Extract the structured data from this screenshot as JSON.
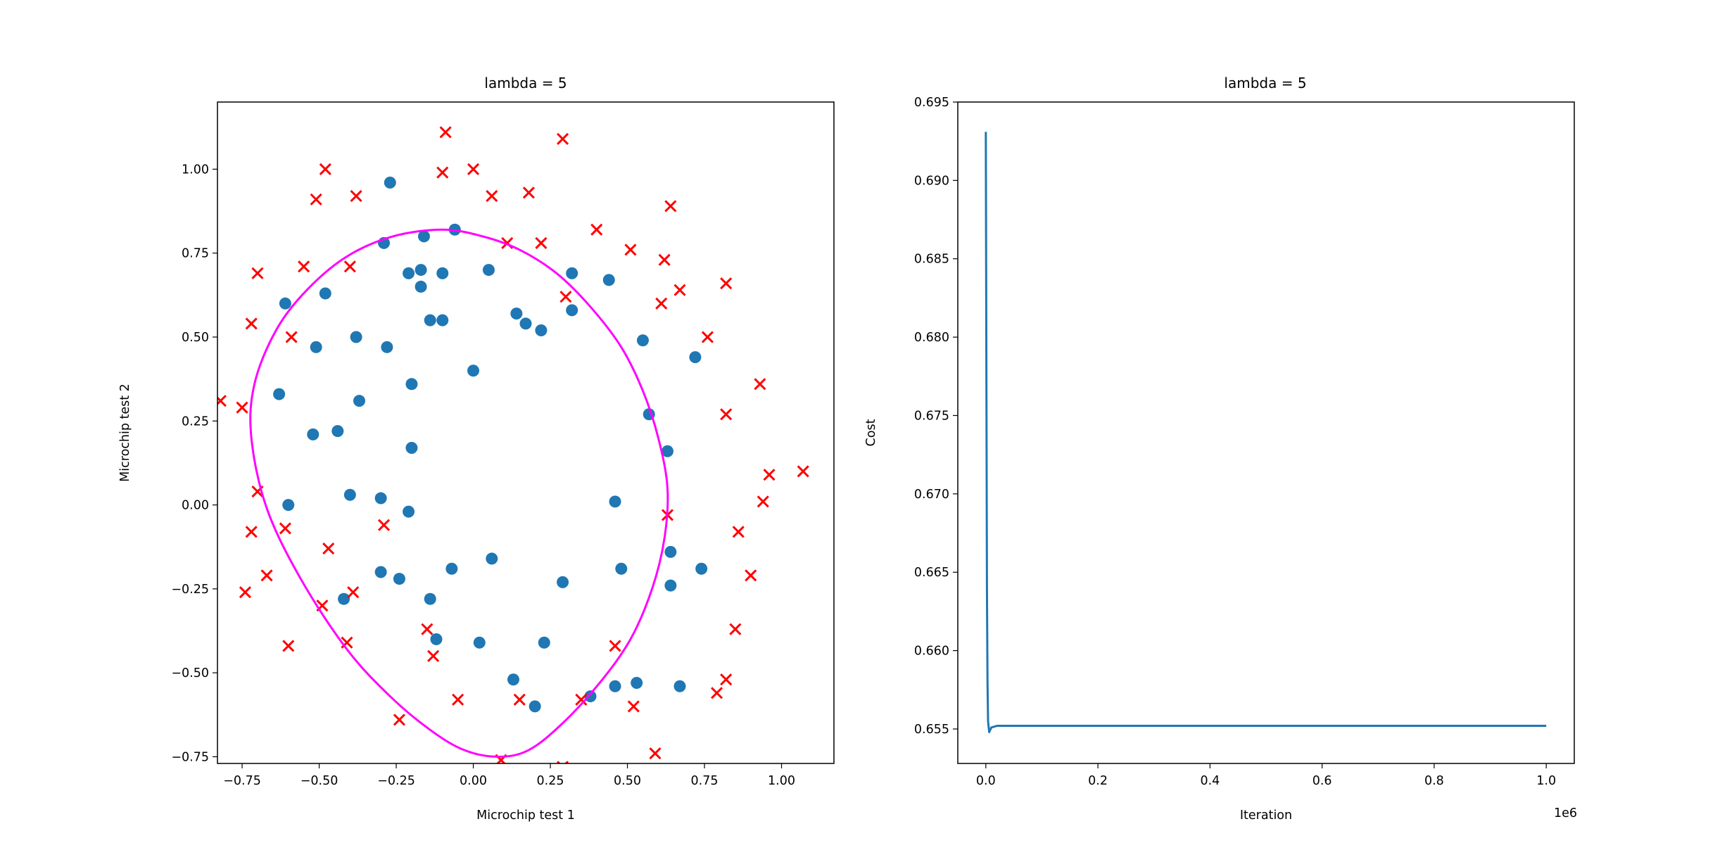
{
  "chart_data": [
    {
      "type": "scatter",
      "title": "lambda = 5",
      "xlabel": "Microchip test 1",
      "ylabel": "Microchip test 2",
      "xlim": [
        -0.83,
        1.17
      ],
      "ylim": [
        -0.77,
        1.2
      ],
      "xticks": [
        -0.75,
        -0.5,
        -0.25,
        0.0,
        0.25,
        0.5,
        0.75,
        1.0
      ],
      "xtick_labels": [
        "−0.75",
        "−0.50",
        "−0.25",
        "0.00",
        "0.25",
        "0.50",
        "0.75",
        "1.00"
      ],
      "yticks": [
        -0.75,
        -0.5,
        -0.25,
        0.0,
        0.25,
        0.5,
        0.75,
        1.0
      ],
      "ytick_labels": [
        "−0.75",
        "−0.50",
        "−0.25",
        "0.00",
        "0.25",
        "0.50",
        "0.75",
        "1.00"
      ],
      "grid": false,
      "legend": "none",
      "series": [
        {
          "marker": "circle",
          "color": "#1f77b4",
          "points": [
            [
              -0.27,
              0.96
            ],
            [
              -0.06,
              0.82
            ],
            [
              -0.29,
              0.78
            ],
            [
              -0.16,
              0.8
            ],
            [
              -0.21,
              0.69
            ],
            [
              -0.17,
              0.7
            ],
            [
              -0.1,
              0.69
            ],
            [
              0.05,
              0.7
            ],
            [
              0.32,
              0.69
            ],
            [
              0.44,
              0.67
            ],
            [
              -0.61,
              0.6
            ],
            [
              -0.48,
              0.63
            ],
            [
              -0.17,
              0.65
            ],
            [
              0.14,
              0.57
            ],
            [
              0.17,
              0.54
            ],
            [
              0.22,
              0.52
            ],
            [
              0.32,
              0.58
            ],
            [
              -0.14,
              0.55
            ],
            [
              -0.1,
              0.55
            ],
            [
              -0.38,
              0.5
            ],
            [
              -0.51,
              0.47
            ],
            [
              -0.28,
              0.47
            ],
            [
              0.55,
              0.49
            ],
            [
              0.72,
              0.44
            ],
            [
              0.0,
              0.4
            ],
            [
              -0.63,
              0.33
            ],
            [
              -0.37,
              0.31
            ],
            [
              -0.2,
              0.36
            ],
            [
              0.57,
              0.27
            ],
            [
              -0.52,
              0.21
            ],
            [
              -0.44,
              0.22
            ],
            [
              -0.2,
              0.17
            ],
            [
              0.63,
              0.16
            ],
            [
              -0.6,
              0.0
            ],
            [
              -0.4,
              0.03
            ],
            [
              -0.3,
              0.02
            ],
            [
              -0.21,
              -0.02
            ],
            [
              0.46,
              0.01
            ],
            [
              0.06,
              -0.16
            ],
            [
              -0.07,
              -0.19
            ],
            [
              0.48,
              -0.19
            ],
            [
              0.64,
              -0.14
            ],
            [
              0.74,
              -0.19
            ],
            [
              -0.3,
              -0.2
            ],
            [
              -0.24,
              -0.22
            ],
            [
              0.29,
              -0.23
            ],
            [
              0.64,
              -0.24
            ],
            [
              -0.42,
              -0.28
            ],
            [
              -0.14,
              -0.28
            ],
            [
              -0.12,
              -0.4
            ],
            [
              0.02,
              -0.41
            ],
            [
              0.23,
              -0.41
            ],
            [
              0.13,
              -0.52
            ],
            [
              0.2,
              -0.6
            ],
            [
              0.38,
              -0.57
            ],
            [
              0.46,
              -0.54
            ],
            [
              0.53,
              -0.53
            ],
            [
              0.67,
              -0.54
            ]
          ]
        },
        {
          "marker": "x",
          "color": "#ff0000",
          "points": [
            [
              -0.09,
              1.11
            ],
            [
              0.29,
              1.09
            ],
            [
              -0.48,
              1.0
            ],
            [
              0.0,
              1.0
            ],
            [
              -0.1,
              0.99
            ],
            [
              -0.51,
              0.91
            ],
            [
              -0.38,
              0.92
            ],
            [
              0.06,
              0.92
            ],
            [
              0.18,
              0.93
            ],
            [
              0.64,
              0.89
            ],
            [
              0.4,
              0.82
            ],
            [
              0.11,
              0.78
            ],
            [
              0.22,
              0.78
            ],
            [
              0.51,
              0.76
            ],
            [
              0.62,
              0.73
            ],
            [
              -0.7,
              0.69
            ],
            [
              -0.55,
              0.71
            ],
            [
              -0.4,
              0.71
            ],
            [
              0.82,
              0.66
            ],
            [
              0.67,
              0.64
            ],
            [
              0.3,
              0.62
            ],
            [
              0.61,
              0.6
            ],
            [
              -0.72,
              0.54
            ],
            [
              -0.59,
              0.5
            ],
            [
              0.76,
              0.5
            ],
            [
              0.93,
              0.36
            ],
            [
              -0.82,
              0.31
            ],
            [
              -0.75,
              0.29
            ],
            [
              0.82,
              0.27
            ],
            [
              0.96,
              0.09
            ],
            [
              1.07,
              0.1
            ],
            [
              -0.7,
              0.04
            ],
            [
              0.94,
              0.01
            ],
            [
              -0.61,
              -0.07
            ],
            [
              -0.29,
              -0.06
            ],
            [
              0.63,
              -0.03
            ],
            [
              -0.72,
              -0.08
            ],
            [
              0.86,
              -0.08
            ],
            [
              -0.47,
              -0.13
            ],
            [
              0.9,
              -0.21
            ],
            [
              -0.67,
              -0.21
            ],
            [
              -0.74,
              -0.26
            ],
            [
              -0.39,
              -0.26
            ],
            [
              -0.49,
              -0.3
            ],
            [
              0.85,
              -0.37
            ],
            [
              -0.15,
              -0.37
            ],
            [
              -0.6,
              -0.42
            ],
            [
              -0.41,
              -0.41
            ],
            [
              0.46,
              -0.42
            ],
            [
              -0.13,
              -0.45
            ],
            [
              0.82,
              -0.52
            ],
            [
              0.79,
              -0.56
            ],
            [
              -0.05,
              -0.58
            ],
            [
              0.15,
              -0.58
            ],
            [
              0.35,
              -0.58
            ],
            [
              0.52,
              -0.6
            ],
            [
              -0.24,
              -0.64
            ],
            [
              0.59,
              -0.74
            ],
            [
              0.09,
              -0.76
            ],
            [
              0.29,
              -0.78
            ]
          ]
        },
        {
          "type": "line",
          "name": "",
          "color": "#ff00ff",
          "points": [
            [
              -0.1,
              0.82
            ],
            [
              0.03,
              0.8
            ],
            [
              0.15,
              0.76
            ],
            [
              0.27,
              0.69
            ],
            [
              0.38,
              0.59
            ],
            [
              0.48,
              0.47
            ],
            [
              0.55,
              0.34
            ],
            [
              0.6,
              0.2
            ],
            [
              0.63,
              0.05
            ],
            [
              0.62,
              -0.1
            ],
            [
              0.58,
              -0.25
            ],
            [
              0.51,
              -0.4
            ],
            [
              0.41,
              -0.53
            ],
            [
              0.29,
              -0.65
            ],
            [
              0.18,
              -0.73
            ],
            [
              0.08,
              -0.75
            ],
            [
              -0.03,
              -0.73
            ],
            [
              -0.14,
              -0.67
            ],
            [
              -0.27,
              -0.57
            ],
            [
              -0.41,
              -0.43
            ],
            [
              -0.56,
              -0.22
            ],
            [
              -0.67,
              -0.01
            ],
            [
              -0.72,
              0.2
            ],
            [
              -0.71,
              0.36
            ],
            [
              -0.64,
              0.52
            ],
            [
              -0.54,
              0.64
            ],
            [
              -0.41,
              0.74
            ],
            [
              -0.26,
              0.8
            ],
            [
              -0.1,
              0.82
            ]
          ]
        }
      ]
    },
    {
      "type": "line",
      "title": "lambda = 5",
      "xlabel": "Iteration",
      "ylabel": "Cost",
      "x_scale_label": "1e6",
      "xlim": [
        -0.05,
        1.05
      ],
      "ylim": [
        0.6528,
        0.695
      ],
      "xticks": [
        0.0,
        0.2,
        0.4,
        0.6,
        0.8,
        1.0
      ],
      "xtick_labels": [
        "0.0",
        "0.2",
        "0.4",
        "0.6",
        "0.8",
        "1.0"
      ],
      "yticks": [
        0.655,
        0.66,
        0.665,
        0.67,
        0.675,
        0.68,
        0.685,
        0.69,
        0.695
      ],
      "ytick_labels": [
        "0.655",
        "0.660",
        "0.665",
        "0.670",
        "0.675",
        "0.680",
        "0.685",
        "0.690",
        "0.695"
      ],
      "grid": false,
      "legend": "none",
      "series": [
        {
          "color": "#1f77b4",
          "x": [
            0.0,
            0.001,
            0.002,
            0.003,
            0.004,
            0.006,
            0.01,
            0.02,
            0.05,
            0.2,
            0.5,
            1.0
          ],
          "y": [
            0.6931,
            0.678,
            0.664,
            0.658,
            0.6555,
            0.6548,
            0.6551,
            0.6552,
            0.6552,
            0.6552,
            0.6552,
            0.6552
          ]
        }
      ]
    }
  ]
}
